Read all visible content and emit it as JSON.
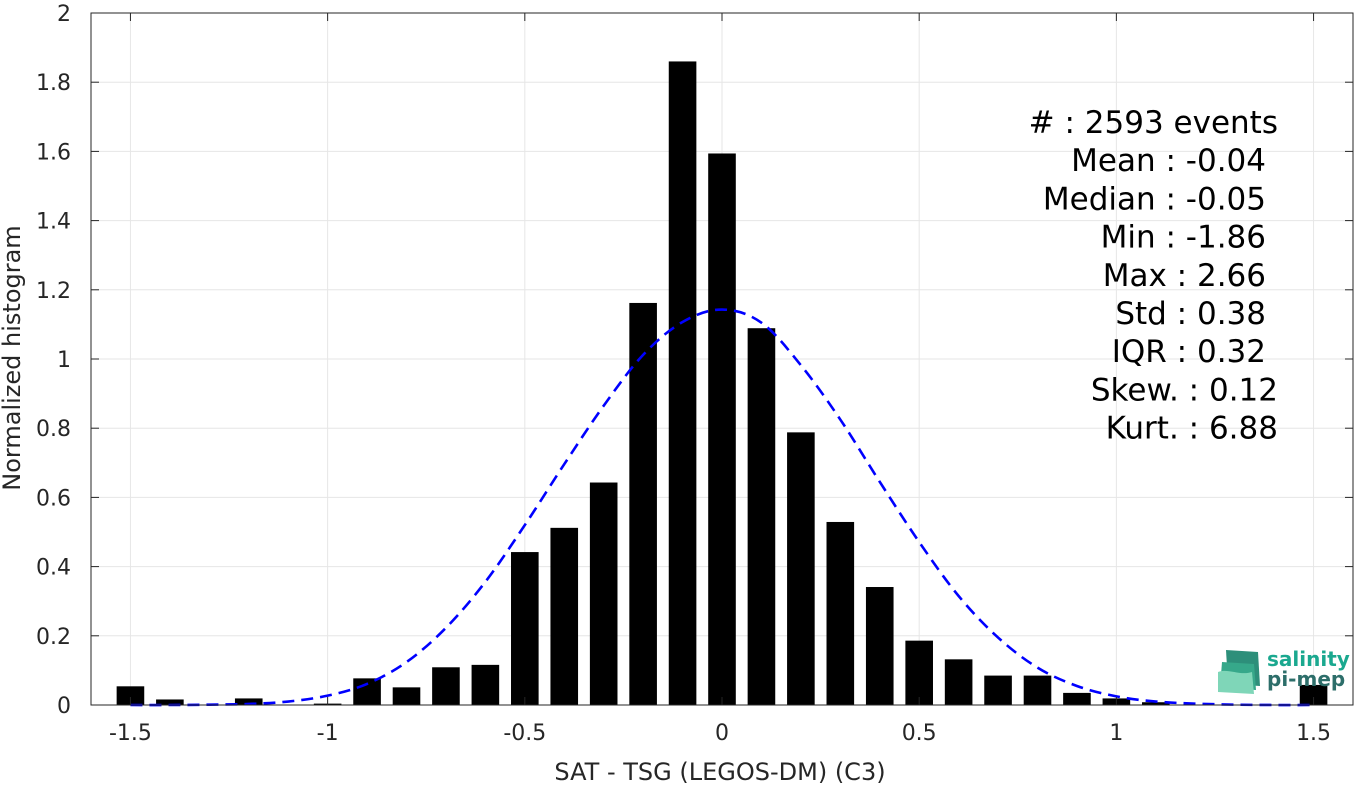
{
  "chart_data": {
    "type": "bar",
    "xlabel": "SAT - TSG (LEGOS-DM) (C3)",
    "ylabel": "Normalized histogram",
    "xlim": [
      -1.6,
      1.6
    ],
    "ylim": [
      0,
      2
    ],
    "x_ticks": [
      -1.5,
      -1,
      -0.5,
      0,
      0.5,
      1,
      1.5
    ],
    "x_tick_labels": [
      "-1.5",
      "-1",
      "-0.5",
      "0",
      "0.5",
      "1",
      "1.5"
    ],
    "y_ticks": [
      0,
      0.2,
      0.4,
      0.6,
      0.8,
      1,
      1.2,
      1.4,
      1.6,
      1.8,
      2
    ],
    "y_tick_labels": [
      "0",
      "0.2",
      "0.4",
      "0.6",
      "0.8",
      "1",
      "1.2",
      "1.4",
      "1.6",
      "1.8",
      "2"
    ],
    "grid": true,
    "bar_color": "#000000",
    "bin_width": 0.1,
    "series": [
      {
        "type": "bar",
        "x": [
          -1.5,
          -1.4,
          -1.3,
          -1.2,
          -1.1,
          -1.0,
          -0.9,
          -0.8,
          -0.7,
          -0.6,
          -0.5,
          -0.4,
          -0.3,
          -0.2,
          -0.1,
          0.0,
          0.1,
          0.2,
          0.3,
          0.4,
          0.5,
          0.6,
          0.7,
          0.8,
          0.9,
          1.0,
          1.1,
          1.2,
          1.3,
          1.4,
          1.5
        ],
        "values": [
          0.054,
          0.016,
          0.0,
          0.019,
          0.0,
          0.004,
          0.077,
          0.051,
          0.109,
          0.116,
          0.442,
          0.512,
          0.643,
          1.162,
          1.86,
          1.594,
          1.089,
          0.788,
          0.529,
          0.341,
          0.186,
          0.132,
          0.085,
          0.085,
          0.035,
          0.019,
          0.008,
          0.0,
          0.0,
          0.0,
          0.058
        ]
      },
      {
        "type": "line",
        "style": "dashed",
        "color": "#0000ff",
        "x": [
          -1.5,
          -1.4,
          -1.3,
          -1.2,
          -1.1,
          -1.0,
          -0.9,
          -0.8,
          -0.7,
          -0.6,
          -0.5,
          -0.4,
          -0.3,
          -0.2,
          -0.1,
          0.0,
          0.1,
          0.2,
          0.3,
          0.4,
          0.5,
          0.6,
          0.7,
          0.8,
          0.9,
          1.0,
          1.1,
          1.2,
          1.3,
          1.4,
          1.5
        ],
        "values": [
          0.0,
          0.0,
          0.001,
          0.003,
          0.01,
          0.027,
          0.061,
          0.124,
          0.223,
          0.356,
          0.52,
          0.696,
          0.865,
          1.012,
          1.107,
          1.143,
          1.105,
          0.982,
          0.825,
          0.645,
          0.471,
          0.315,
          0.195,
          0.108,
          0.055,
          0.025,
          0.01,
          0.004,
          0.001,
          0.0,
          0.0
        ]
      }
    ],
    "stats": [
      "#  : 2593 events",
      "Mean : -0.04",
      "Median : -0.05",
      "Min : -1.86",
      "Max : 2.66",
      "Std : 0.38",
      "IQR : 0.32",
      "Skew. : 0.12",
      "Kurt. : 6.88"
    ]
  },
  "logo": {
    "line1": "salinity",
    "line2": "pi-mep",
    "color_primary": "#1aa88f",
    "color_secondary": "#2d6e6a"
  }
}
